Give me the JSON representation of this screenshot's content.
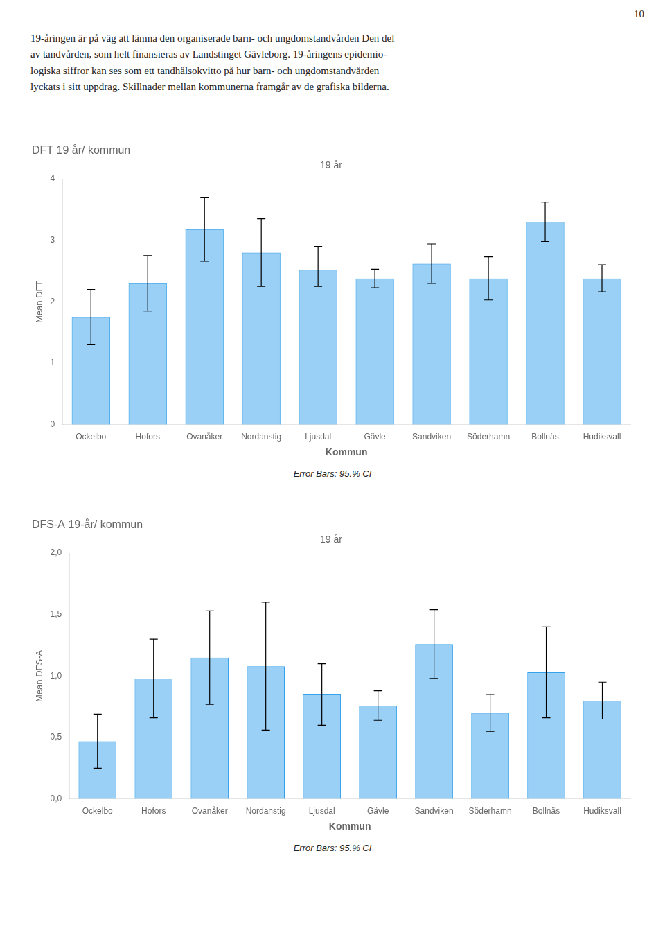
{
  "page_number": "10",
  "paragraph": [
    "19-åringen är på väg att lämna den organiserade barn- och ungdomstandvården Den del",
    "av tandvården, som helt finansieras av Landstinget Gävleborg. 19-åringens epidemio-",
    "logiska siffror kan ses som ett tandhälsokvitto på hur barn- och ungdomstandvården",
    "lyckats i sitt uppdrag. Skillnader mellan kommunerna framgår av de grafiska bilderna."
  ],
  "chart_data": [
    {
      "type": "bar",
      "title": "DFT 19 år/ kommun",
      "subtitle": "19 år",
      "xlabel": "Kommun",
      "ylabel": "Mean DFT",
      "categories": [
        "Ockelbo",
        "Hofors",
        "Ovanåker",
        "Nordanstig",
        "Ljusdal",
        "Gävle",
        "Sandviken",
        "Söderhamn",
        "Bollnäs",
        "Hudiksvall"
      ],
      "values": [
        1.75,
        2.3,
        3.18,
        2.8,
        2.52,
        2.38,
        2.62,
        2.38,
        3.3,
        2.38
      ],
      "error_minus": [
        0.45,
        0.45,
        0.52,
        0.55,
        0.27,
        0.15,
        0.32,
        0.35,
        0.32,
        0.22
      ],
      "error_plus": [
        0.45,
        0.45,
        0.52,
        0.55,
        0.38,
        0.15,
        0.32,
        0.35,
        0.32,
        0.22
      ],
      "ylim": [
        0,
        4
      ],
      "yticks": [
        0,
        1,
        2,
        3,
        4
      ],
      "grid": false,
      "annotations": [
        "Error Bars: 95.% CI"
      ]
    },
    {
      "type": "bar",
      "title": "DFS-A 19-år/ kommun",
      "subtitle": "19 år",
      "xlabel": "Kommun",
      "ylabel": "Mean DFS-A",
      "categories": [
        "Ockelbo",
        "Hofors",
        "Ovanåker",
        "Nordanstig",
        "Ljusdal",
        "Gävle",
        "Sandviken",
        "Söderhamn",
        "Bollnäs",
        "Hudiksvall"
      ],
      "values": [
        0.47,
        0.98,
        1.15,
        1.08,
        0.85,
        0.76,
        1.26,
        0.7,
        1.03,
        0.8
      ],
      "error_minus": [
        0.22,
        0.32,
        0.38,
        0.52,
        0.25,
        0.12,
        0.28,
        0.15,
        0.37,
        0.15
      ],
      "error_plus": [
        0.22,
        0.32,
        0.38,
        0.52,
        0.25,
        0.12,
        0.28,
        0.15,
        0.37,
        0.15
      ],
      "ylim": [
        0.0,
        2.0
      ],
      "yticks": [
        {
          "value": 0.0,
          "label": "0,0"
        },
        {
          "value": 0.5,
          "label": "0,5"
        },
        {
          "value": 1.0,
          "label": "1,0"
        },
        {
          "value": 1.5,
          "label": "1,5"
        },
        {
          "value": 2.0,
          "label": "2,0"
        }
      ],
      "grid": false,
      "annotations": [
        "Error Bars: 95.% CI"
      ]
    }
  ]
}
